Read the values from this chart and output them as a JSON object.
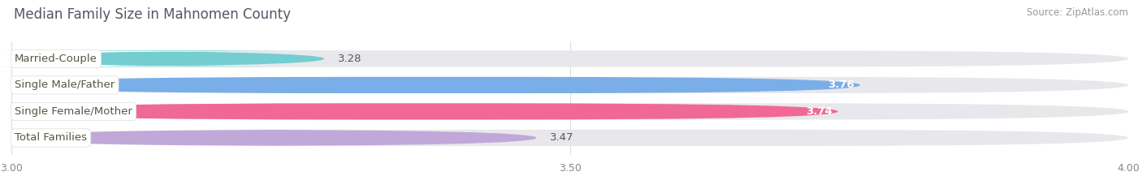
{
  "title": "Median Family Size in Mahnomen County",
  "source": "Source: ZipAtlas.com",
  "categories": [
    "Married-Couple",
    "Single Male/Father",
    "Single Female/Mother",
    "Total Families"
  ],
  "values": [
    3.28,
    3.76,
    3.74,
    3.47
  ],
  "bar_colors": [
    "#74cdd0",
    "#7aaee8",
    "#f06898",
    "#c0a8d8"
  ],
  "value_in_bar": [
    false,
    true,
    true,
    false
  ],
  "background_color": "#ffffff",
  "bar_bg_color": "#e8e8ec",
  "xlim": [
    3.0,
    4.0
  ],
  "xticks": [
    3.0,
    3.5,
    4.0
  ],
  "title_color": "#555566",
  "label_color": "#555544",
  "value_color_outside": "#555566",
  "value_color_inside": "#ffffff",
  "source_color": "#999999",
  "title_fontsize": 12,
  "label_fontsize": 9.5,
  "value_fontsize": 9.5,
  "tick_fontsize": 9,
  "source_fontsize": 8.5,
  "bar_height": 0.62,
  "bar_rounding": 0.31
}
